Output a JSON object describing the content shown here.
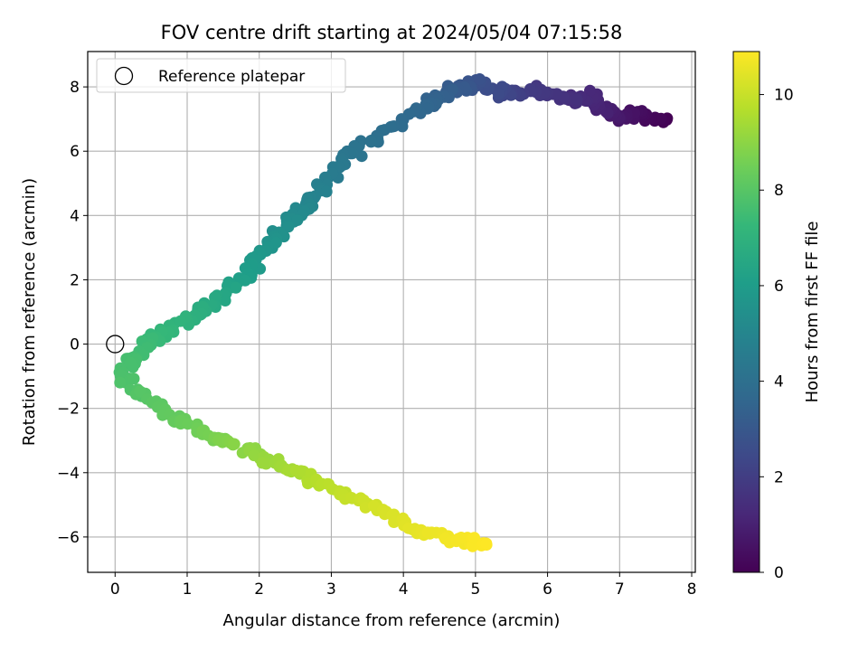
{
  "chart_data": {
    "type": "scatter",
    "title": "FOV centre drift starting at 2024/05/04 07:15:58",
    "xlabel": "Angular distance from reference (arcmin)",
    "ylabel": "Rotation from reference (arcmin)",
    "xlim": [
      -0.38,
      8.05
    ],
    "ylim": [
      -7.1,
      9.1
    ],
    "xticks": [
      0,
      1,
      2,
      3,
      4,
      5,
      6,
      7,
      8
    ],
    "yticks": [
      -6,
      -4,
      -2,
      0,
      2,
      4,
      6,
      8
    ],
    "grid": true,
    "legend": {
      "placement": "upper-left",
      "entries": [
        "Reference platepar"
      ]
    },
    "reference_point": {
      "x": 0,
      "y": 0
    },
    "colorbar": {
      "label": "Hours from first FF file",
      "min": 0,
      "max": 10.9,
      "ticks": [
        0,
        2,
        4,
        6,
        8,
        10
      ],
      "colormap": "viridis",
      "stops": [
        "#440154",
        "#482878",
        "#3e4989",
        "#31688e",
        "#26828e",
        "#1f9e89",
        "#35b779",
        "#6ece58",
        "#b5de2b",
        "#fde725"
      ]
    },
    "path_points": [
      {
        "x": 7.65,
        "y": 6.9,
        "t": 0.0
      },
      {
        "x": 7.3,
        "y": 7.15,
        "t": 0.35
      },
      {
        "x": 7.0,
        "y": 7.05,
        "t": 0.7
      },
      {
        "x": 6.75,
        "y": 7.3,
        "t": 1.0
      },
      {
        "x": 6.55,
        "y": 7.75,
        "t": 1.25
      },
      {
        "x": 6.35,
        "y": 7.55,
        "t": 1.45
      },
      {
        "x": 5.95,
        "y": 7.9,
        "t": 1.75
      },
      {
        "x": 5.6,
        "y": 7.7,
        "t": 2.05
      },
      {
        "x": 5.3,
        "y": 7.85,
        "t": 2.4
      },
      {
        "x": 5.05,
        "y": 8.15,
        "t": 2.75
      },
      {
        "x": 4.75,
        "y": 8.0,
        "t": 3.05
      },
      {
        "x": 4.5,
        "y": 7.7,
        "t": 3.35
      },
      {
        "x": 4.3,
        "y": 7.35,
        "t": 3.6
      },
      {
        "x": 3.6,
        "y": 6.45,
        "t": 4.0
      },
      {
        "x": 3.2,
        "y": 5.8,
        "t": 4.3
      },
      {
        "x": 2.95,
        "y": 5.1,
        "t": 4.6
      },
      {
        "x": 2.7,
        "y": 4.4,
        "t": 4.95
      },
      {
        "x": 2.45,
        "y": 3.9,
        "t": 5.25
      },
      {
        "x": 2.2,
        "y": 3.2,
        "t": 5.6
      },
      {
        "x": 1.9,
        "y": 2.4,
        "t": 5.95
      },
      {
        "x": 1.6,
        "y": 1.7,
        "t": 6.3
      },
      {
        "x": 1.3,
        "y": 1.2,
        "t": 6.65
      },
      {
        "x": 0.95,
        "y": 0.7,
        "t": 7.0
      },
      {
        "x": 0.6,
        "y": 0.2,
        "t": 7.3
      },
      {
        "x": 0.25,
        "y": -0.4,
        "t": 7.6
      },
      {
        "x": 0.1,
        "y": -1.1,
        "t": 7.75
      },
      {
        "x": 0.45,
        "y": -1.7,
        "t": 8.0
      },
      {
        "x": 0.9,
        "y": -2.4,
        "t": 8.3
      },
      {
        "x": 1.35,
        "y": -2.9,
        "t": 8.65
      },
      {
        "x": 1.8,
        "y": -3.3,
        "t": 9.0
      },
      {
        "x": 2.3,
        "y": -3.8,
        "t": 9.35
      },
      {
        "x": 2.8,
        "y": -4.3,
        "t": 9.7
      },
      {
        "x": 3.3,
        "y": -4.8,
        "t": 10.0
      },
      {
        "x": 3.8,
        "y": -5.35,
        "t": 10.3
      },
      {
        "x": 4.3,
        "y": -5.85,
        "t": 10.55
      },
      {
        "x": 4.75,
        "y": -6.1,
        "t": 10.75
      },
      {
        "x": 5.15,
        "y": -6.2,
        "t": 10.9
      }
    ]
  }
}
